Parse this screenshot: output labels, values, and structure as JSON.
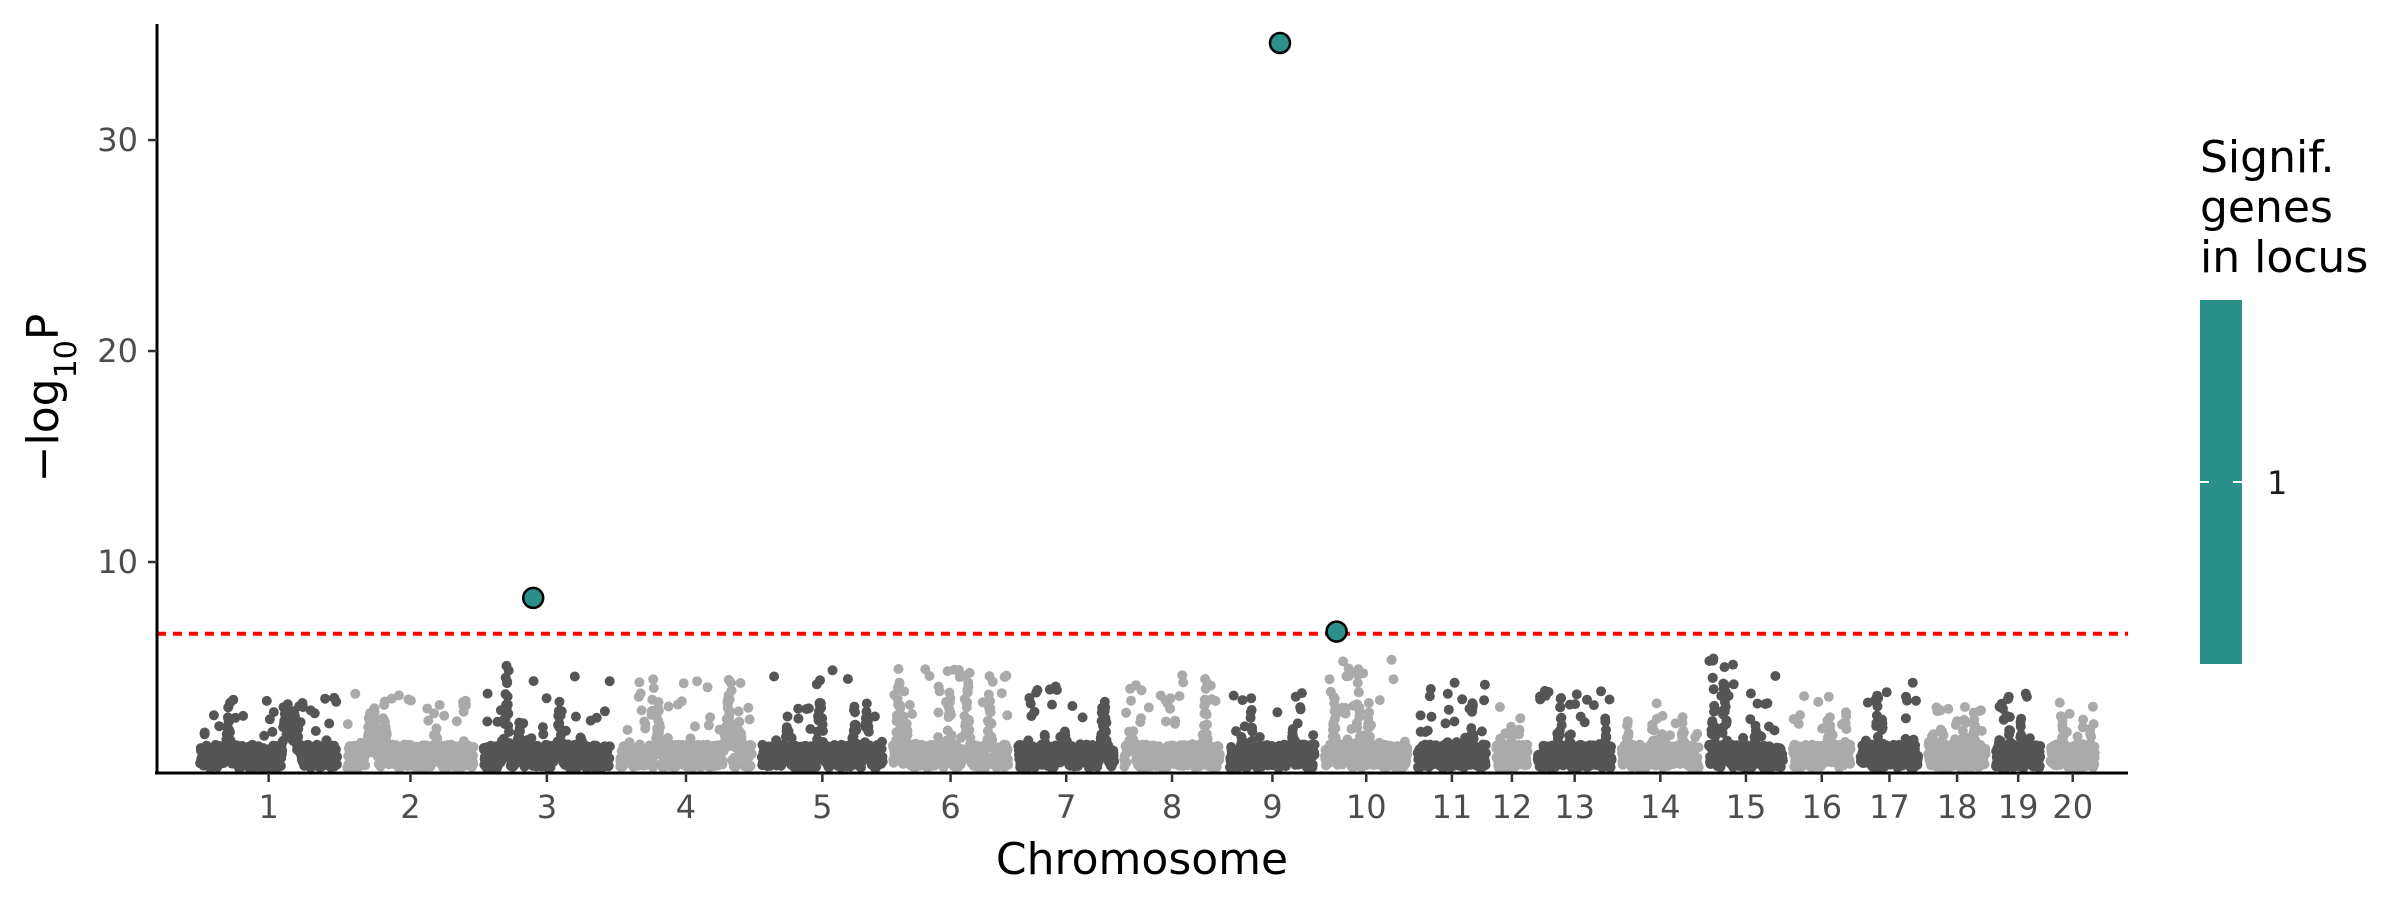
{
  "chart_data": {
    "type": "scatter",
    "subtype": "manhattan",
    "xlabel": "Chromosome",
    "ylabel_main": "−log",
    "ylabel_sub": "10",
    "ylabel_end": "P",
    "ylim": [
      0,
      35.5
    ],
    "yticks": [
      10,
      20,
      30
    ],
    "significance_threshold": 6.6,
    "threshold_color": "#ff0000",
    "chromosomes": [
      {
        "label": "1",
        "length": 1.35,
        "peak": 3.6,
        "color": "#555555"
      },
      {
        "label": "2",
        "length": 1.25,
        "peak": 3.7,
        "color": "#aaaaaa"
      },
      {
        "label": "3",
        "length": 1.25,
        "peak": 5.3,
        "color": "#555555"
      },
      {
        "label": "4",
        "length": 1.3,
        "peak": 4.7,
        "color": "#aaaaaa"
      },
      {
        "label": "5",
        "length": 1.2,
        "peak": 5.4,
        "color": "#555555"
      },
      {
        "label": "6",
        "length": 1.15,
        "peak": 5.4,
        "color": "#aaaaaa"
      },
      {
        "label": "7",
        "length": 0.97,
        "peak": 4.3,
        "color": "#555555"
      },
      {
        "label": "8",
        "length": 0.97,
        "peak": 5.2,
        "color": "#aaaaaa"
      },
      {
        "label": "9",
        "length": 0.87,
        "peak": 3.8,
        "color": "#555555"
      },
      {
        "label": "10",
        "length": 0.85,
        "peak": 6.0,
        "color": "#aaaaaa"
      },
      {
        "label": "11",
        "length": 0.72,
        "peak": 4.4,
        "color": "#555555"
      },
      {
        "label": "12",
        "length": 0.38,
        "peak": 2.8,
        "color": "#aaaaaa"
      },
      {
        "label": "13",
        "length": 0.77,
        "peak": 4.3,
        "color": "#555555"
      },
      {
        "label": "14",
        "length": 0.8,
        "peak": 3.1,
        "color": "#aaaaaa"
      },
      {
        "label": "15",
        "length": 0.77,
        "peak": 6.1,
        "color": "#555555"
      },
      {
        "label": "16",
        "length": 0.62,
        "peak": 3.6,
        "color": "#aaaaaa"
      },
      {
        "label": "17",
        "length": 0.62,
        "peak": 4.5,
        "color": "#555555"
      },
      {
        "label": "18",
        "length": 0.62,
        "peak": 2.8,
        "color": "#aaaaaa"
      },
      {
        "label": "19",
        "length": 0.5,
        "peak": 3.8,
        "color": "#555555"
      },
      {
        "label": "20",
        "length": 0.5,
        "peak": 3.5,
        "color": "#aaaaaa"
      }
    ],
    "significant_hits": [
      {
        "chromosome": "3",
        "offset": 0.4,
        "value": 8.3
      },
      {
        "chromosome": "9",
        "offset": 0.58,
        "value": 34.6
      },
      {
        "chromosome": "10",
        "offset": 0.18,
        "value": 6.7
      }
    ],
    "hit_color": "#2a9089",
    "legend": {
      "title_lines": [
        "Signif.",
        "genes",
        "in locus"
      ],
      "colorbar_color": "#2a9089",
      "label": "1"
    }
  }
}
